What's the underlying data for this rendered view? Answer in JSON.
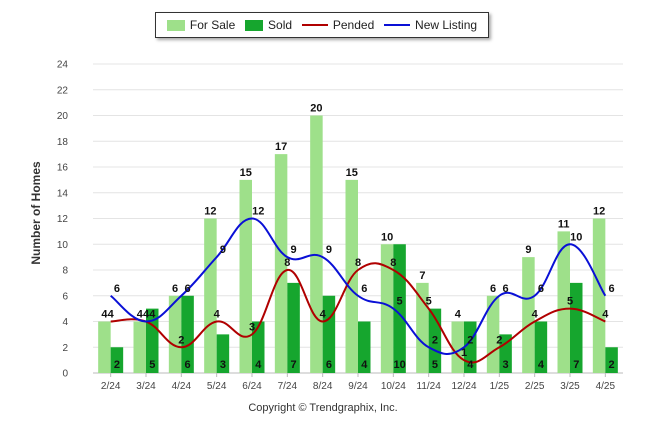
{
  "chart_data": {
    "type": "bar",
    "ylabel": "Number of Homes",
    "xlabel": "",
    "ylim": [
      0,
      24
    ],
    "yticks": [
      0,
      2,
      4,
      6,
      8,
      10,
      12,
      14,
      16,
      18,
      20,
      22,
      24
    ],
    "grid": true,
    "legend_position": "top",
    "categories": [
      "2/24",
      "3/24",
      "4/24",
      "5/24",
      "6/24",
      "7/24",
      "8/24",
      "9/24",
      "10/24",
      "11/24",
      "12/24",
      "1/25",
      "2/25",
      "3/25",
      "4/25"
    ],
    "series": [
      {
        "name": "For Sale",
        "kind": "bar",
        "color": "#9ee08a",
        "values": [
          4,
          4,
          6,
          12,
          15,
          17,
          20,
          15,
          10,
          7,
          4,
          6,
          9,
          11,
          12
        ]
      },
      {
        "name": "Sold",
        "kind": "bar",
        "color": "#16a62e",
        "values": [
          2,
          5,
          6,
          3,
          4,
          7,
          6,
          4,
          10,
          5,
          4,
          3,
          4,
          7,
          2
        ]
      },
      {
        "name": "Pended",
        "kind": "line",
        "color": "#b00000",
        "values": [
          4,
          4,
          2,
          4,
          3,
          8,
          4,
          8,
          8,
          5,
          1,
          2,
          4,
          5,
          4
        ]
      },
      {
        "name": "New Listing",
        "kind": "line",
        "color": "#0a10d6",
        "values": [
          6,
          4,
          6,
          9,
          12,
          9,
          9,
          6,
          5,
          2,
          2,
          6,
          6,
          10,
          6
        ]
      }
    ]
  },
  "footer": "Copyright © Trendgraphix, Inc."
}
